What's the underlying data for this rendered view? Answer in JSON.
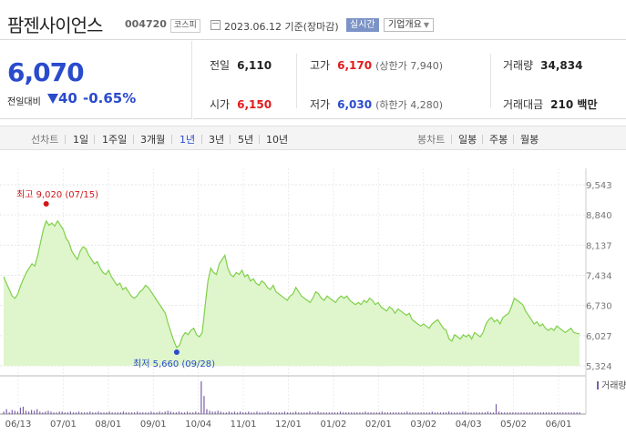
{
  "stock": {
    "name": "팜젠사이언스",
    "code": "004720",
    "market": "코스피",
    "date": "2023.06.12 기준(장마감)",
    "realtime_button": "실시간",
    "company_info_button": "기업개요",
    "price": "6,070",
    "change_label": "전일대비",
    "change": "40",
    "change_pct": "-0.65%",
    "direction": "down"
  },
  "summary": {
    "prev_close": {
      "label": "전일",
      "value": "6,110"
    },
    "high": {
      "label": "고가",
      "value": "6,170",
      "sub": "(상한가 7,940)"
    },
    "volume": {
      "label": "거래량",
      "value": "34,834"
    },
    "open": {
      "label": "시가",
      "value": "6,150"
    },
    "low": {
      "label": "저가",
      "value": "6,030",
      "sub": "(하한가 4,280)"
    },
    "amount": {
      "label": "거래대금",
      "value": "210 백만"
    }
  },
  "tabs": {
    "line_label": "선차트",
    "periods": [
      "1일",
      "1주일",
      "3개월",
      "1년",
      "3년",
      "5년",
      "10년"
    ],
    "selected": "1년",
    "candle_label": "봉차트",
    "candles": [
      "일봉",
      "주봉",
      "월봉"
    ]
  },
  "chart_data": {
    "type": "area",
    "y_ticks": [
      "9,543",
      "8,840",
      "8,137",
      "7,434",
      "6,730",
      "6,027",
      "5,324"
    ],
    "ylim": [
      5324,
      9543
    ],
    "x_ticks": [
      "06/13",
      "07/01",
      "08/01",
      "09/01",
      "10/04",
      "11/01",
      "12/01",
      "01/02",
      "02/01",
      "03/02",
      "04/03",
      "05/02",
      "06/01"
    ],
    "high_label": "최고 9,020 (07/15)",
    "low_label": "최저 5,660 (09/28)",
    "volume_label": "거래량",
    "line_color": "#7fd14a",
    "fill_color": "#dff5cc",
    "prices": [
      7400,
      7250,
      7100,
      6950,
      6900,
      7000,
      7200,
      7350,
      7500,
      7600,
      7700,
      7650,
      7900,
      8200,
      8500,
      8700,
      8600,
      8650,
      8580,
      8700,
      8600,
      8500,
      8300,
      8200,
      8000,
      7900,
      7800,
      8000,
      8100,
      8050,
      7900,
      7800,
      7700,
      7750,
      7600,
      7500,
      7450,
      7550,
      7400,
      7300,
      7200,
      7250,
      7100,
      7150,
      7050,
      6950,
      6900,
      6950,
      7050,
      7100,
      7200,
      7150,
      7050,
      6950,
      6850,
      6750,
      6650,
      6550,
      6300,
      6100,
      5900,
      5750,
      5800,
      6000,
      6100,
      6050,
      6150,
      6200,
      6050,
      6000,
      6100,
      6700,
      7300,
      7600,
      7500,
      7450,
      7700,
      7800,
      7900,
      7600,
      7450,
      7400,
      7500,
      7450,
      7550,
      7400,
      7450,
      7300,
      7350,
      7250,
      7200,
      7300,
      7250,
      7150,
      7100,
      7200,
      7050,
      7000,
      6950,
      6900,
      6850,
      6950,
      7000,
      7150,
      7050,
      6950,
      6900,
      6850,
      6800,
      6900,
      7050,
      7000,
      6900,
      6850,
      6950,
      6900,
      6850,
      6800,
      6900,
      6950,
      6900,
      6950,
      6850,
      6800,
      6750,
      6800,
      6750,
      6850,
      6800,
      6900,
      6850,
      6750,
      6800,
      6700,
      6650,
      6600,
      6700,
      6650,
      6550,
      6650,
      6600,
      6550,
      6500,
      6550,
      6400,
      6350,
      6300,
      6250,
      6300,
      6250,
      6200,
      6300,
      6350,
      6400,
      6300,
      6200,
      6150,
      5950,
      5900,
      6050,
      6000,
      5950,
      6050,
      6000,
      6050,
      5950,
      6100,
      6050,
      6000,
      6100,
      6300,
      6400,
      6450,
      6350,
      6400,
      6300,
      6450,
      6500,
      6550,
      6700,
      6900,
      6850,
      6800,
      6750,
      6600,
      6500,
      6400,
      6300,
      6350,
      6250,
      6300,
      6200,
      6150,
      6200,
      6150,
      6250,
      6200,
      6150,
      6100,
      6150,
      6200,
      6100,
      6080,
      6070
    ],
    "volumes": [
      3,
      6,
      2,
      5,
      4,
      3,
      8,
      9,
      4,
      3,
      5,
      4,
      6,
      3,
      2,
      3,
      4,
      3,
      2,
      2,
      3,
      3,
      2,
      2,
      3,
      2,
      2,
      3,
      2,
      2,
      2,
      3,
      2,
      2,
      3,
      2,
      2,
      2,
      3,
      2,
      2,
      2,
      2,
      3,
      2,
      2,
      2,
      2,
      3,
      2,
      2,
      2,
      2,
      3,
      2,
      2,
      3,
      2,
      3,
      4,
      3,
      2,
      2,
      3,
      2,
      2,
      3,
      2,
      2,
      3,
      2,
      40,
      22,
      6,
      4,
      3,
      3,
      4,
      3,
      2,
      2,
      3,
      2,
      3,
      2,
      3,
      2,
      2,
      3,
      2,
      2,
      3,
      2,
      2,
      2,
      3,
      2,
      2,
      2,
      2,
      2,
      3,
      2,
      2,
      2,
      3,
      2,
      2,
      2,
      2,
      3,
      2,
      2,
      3,
      2,
      2,
      2,
      2,
      2,
      2,
      2,
      3,
      2,
      2,
      2,
      2,
      2,
      2,
      2,
      2,
      3,
      2,
      2,
      2,
      2,
      2,
      3,
      2,
      2,
      2,
      2,
      2,
      2,
      2,
      2,
      3,
      2,
      2,
      2,
      2,
      2,
      2,
      2,
      2,
      3,
      2,
      2,
      2,
      2,
      2,
      3,
      2,
      2,
      2,
      2,
      3,
      3,
      2,
      2,
      2,
      2,
      2,
      2,
      2,
      3,
      2,
      2,
      12,
      3,
      2,
      2,
      2,
      2,
      2,
      2,
      2,
      2,
      2,
      2,
      2,
      2,
      2,
      2,
      2,
      2,
      2,
      2,
      2,
      2,
      2,
      2,
      2,
      2,
      2,
      2,
      2,
      2,
      2
    ]
  }
}
